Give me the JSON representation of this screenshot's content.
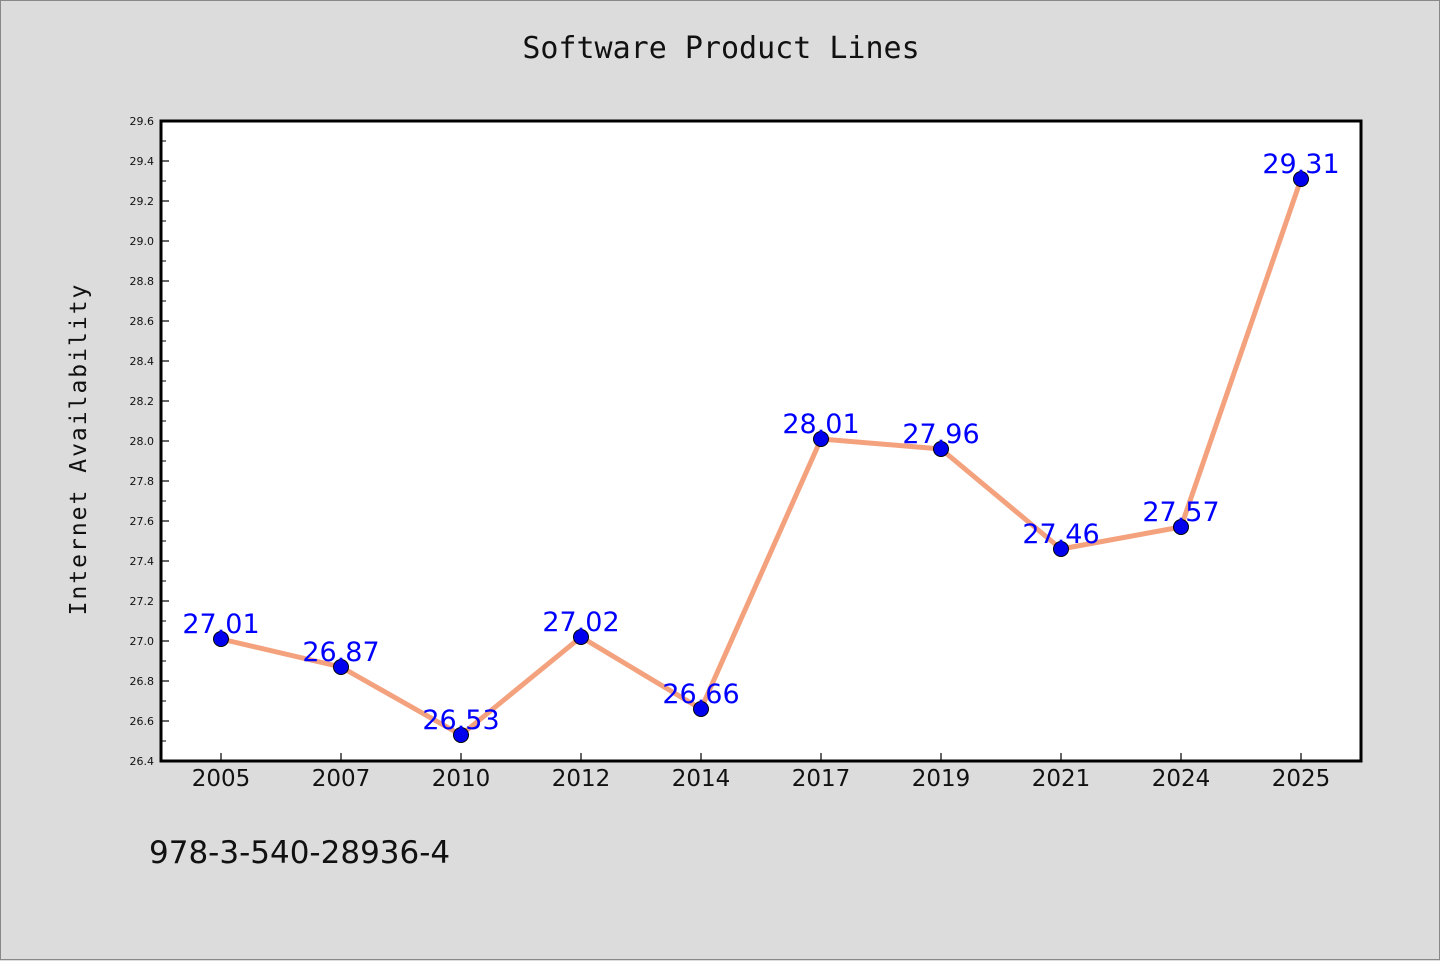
{
  "chart_data": {
    "type": "line",
    "title": "Software Product Lines",
    "xlabel": "",
    "ylabel": "Internet Availability",
    "categories": [
      "2005",
      "2007",
      "2010",
      "2012",
      "2014",
      "2017",
      "2019",
      "2021",
      "2024",
      "2025"
    ],
    "series": [
      {
        "values": [
          27.01,
          26.87,
          26.53,
          27.02,
          26.66,
          28.01,
          27.96,
          27.46,
          27.57,
          29.31
        ],
        "data_labels": [
          "27.01",
          "26.87",
          "26.53",
          "27.02",
          "26.66",
          "28.01",
          "27.96",
          "27.46",
          "27.57",
          "29.31"
        ],
        "line_color": "#f4a27e",
        "marker_color": "#0000ee",
        "label_color": "#0000ff"
      }
    ],
    "ylim": [
      26.4,
      29.6
    ],
    "yticks": [
      "26.4",
      "26.6",
      "26.8",
      "27.0",
      "27.2",
      "27.4",
      "27.6",
      "27.8",
      "28.0",
      "28.2",
      "28.4",
      "28.6",
      "28.8",
      "29.0",
      "29.2",
      "29.4",
      "29.6"
    ],
    "grid": false,
    "legend": "none"
  },
  "footer_text": "978-3-540-28936-4",
  "colors": {
    "background": "#dcdcdc",
    "plot_background": "#ffffff",
    "axis": "#000000"
  }
}
